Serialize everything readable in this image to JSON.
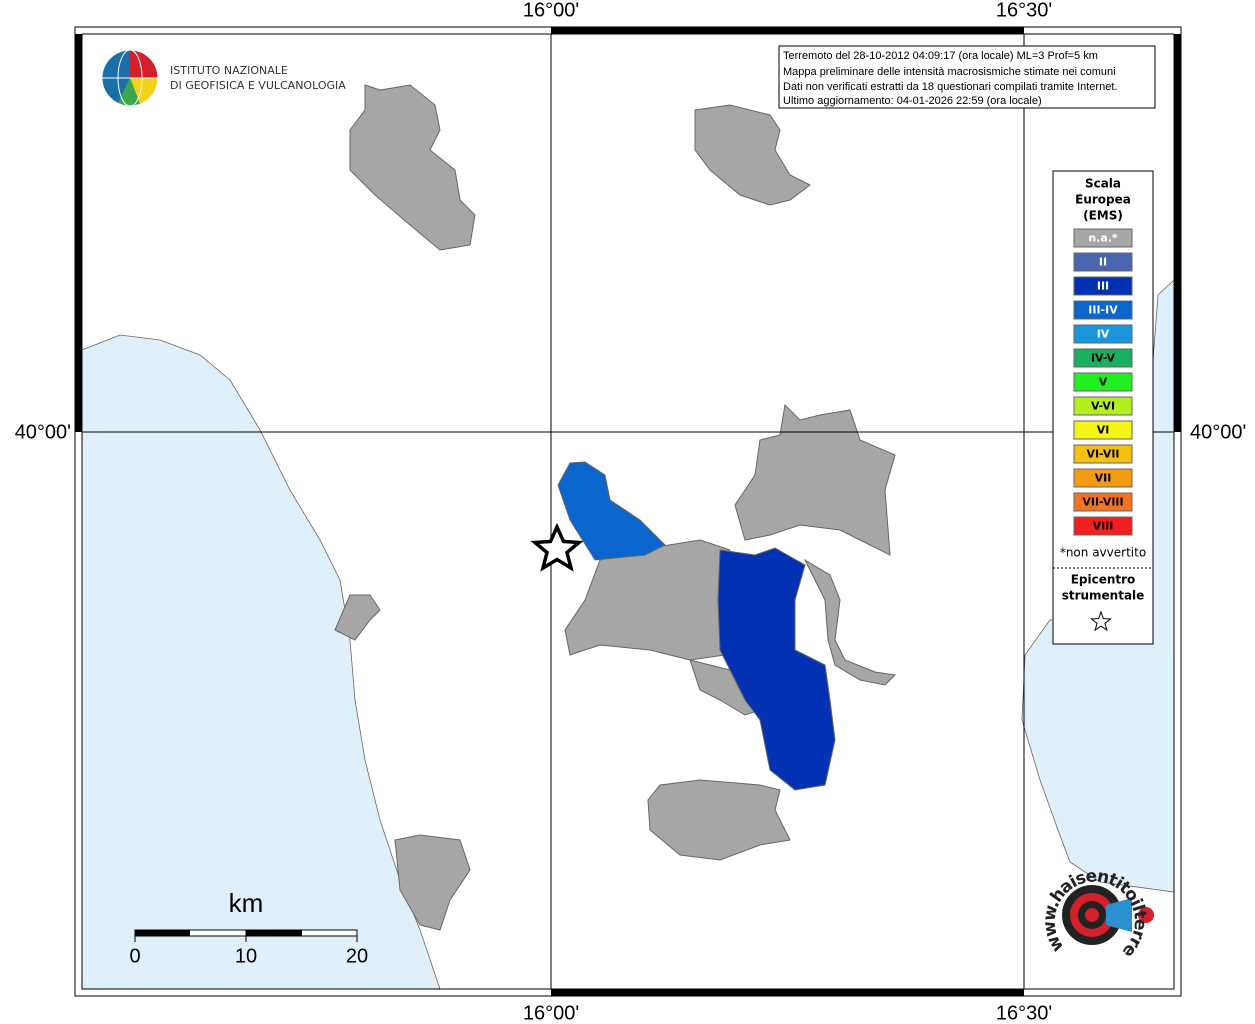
{
  "grid": {
    "lon_labels": [
      "16°00'",
      "16°30'"
    ],
    "lat_labels": [
      "40°00'"
    ]
  },
  "logo": {
    "line1": "ISTITUTO NAZIONALE",
    "line2": "DI GEOFISICA E VULCANOLOGIA"
  },
  "info": [
    "Terremoto del 28-10-2012 04:09:17 (ora locale) ML=3 Prof=5 km",
    "Mappa preliminare delle intensità macrosismiche stimate nei comuni",
    "Dati non verificati estratti da 18 questionari compilati tramite Internet.",
    "Ultimo aggiornamento: 04-01-2026 22:59 (ora locale)"
  ],
  "legend": {
    "title": [
      "Scala",
      "Europea",
      "(EMS)"
    ],
    "items": [
      {
        "label": "n.a.*",
        "color": "#a6a6a6",
        "text_color": "#ffffff"
      },
      {
        "label": "II",
        "color": "#4a65b0",
        "text_color": "#ffffff"
      },
      {
        "label": "III",
        "color": "#0331b3",
        "text_color": "#ffffff"
      },
      {
        "label": "III-IV",
        "color": "#0a66cc",
        "text_color": "#ffffff"
      },
      {
        "label": "IV",
        "color": "#1a96dd",
        "text_color": "#ffffff"
      },
      {
        "label": "IV-V",
        "color": "#19b060",
        "text_color": "#000000"
      },
      {
        "label": "V",
        "color": "#22ee22",
        "text_color": "#000000"
      },
      {
        "label": "V-VI",
        "color": "#b4f01e",
        "text_color": "#000000"
      },
      {
        "label": "VI",
        "color": "#f5f516",
        "text_color": "#000000"
      },
      {
        "label": "VI-VII",
        "color": "#f5c012",
        "text_color": "#000000"
      },
      {
        "label": "VII",
        "color": "#f59b12",
        "text_color": "#000000"
      },
      {
        "label": "VII-VIII",
        "color": "#f5721e",
        "text_color": "#000000"
      },
      {
        "label": "VIII",
        "color": "#f51e1e",
        "text_color": "#000000"
      }
    ],
    "note": "*non avvertito",
    "epicenter": [
      "Epicentro",
      "strumentale"
    ]
  },
  "scale_bar": {
    "unit": "km",
    "ticks": [
      "0",
      "10",
      "20"
    ]
  },
  "badge": "www.haisentitoilterremoto.it"
}
